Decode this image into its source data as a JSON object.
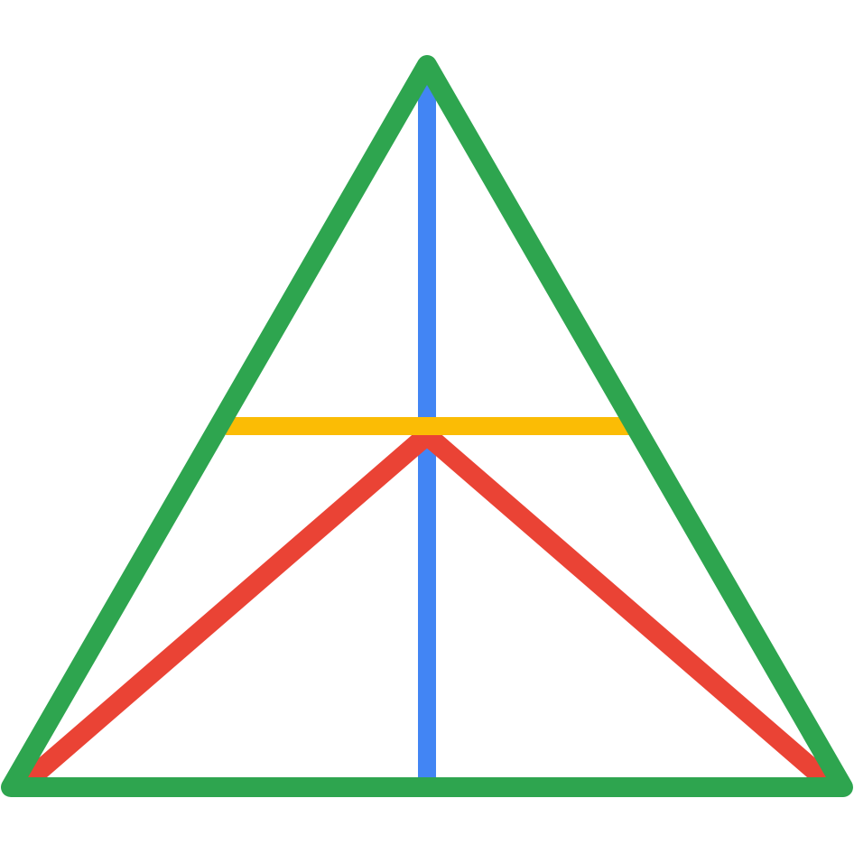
{
  "diagram": {
    "shapes": [
      {
        "id": "outer-triangle",
        "kind": "triangle-outline",
        "color": "#2EA54F"
      },
      {
        "id": "median-vertical",
        "kind": "line",
        "color": "#4285F4"
      },
      {
        "id": "horizontal-bar",
        "kind": "line",
        "color": "#FBBC05"
      },
      {
        "id": "inner-left-segment",
        "kind": "line",
        "color": "#EA4335"
      },
      {
        "id": "inner-right-segment",
        "kind": "line",
        "color": "#EA4335"
      }
    ]
  }
}
